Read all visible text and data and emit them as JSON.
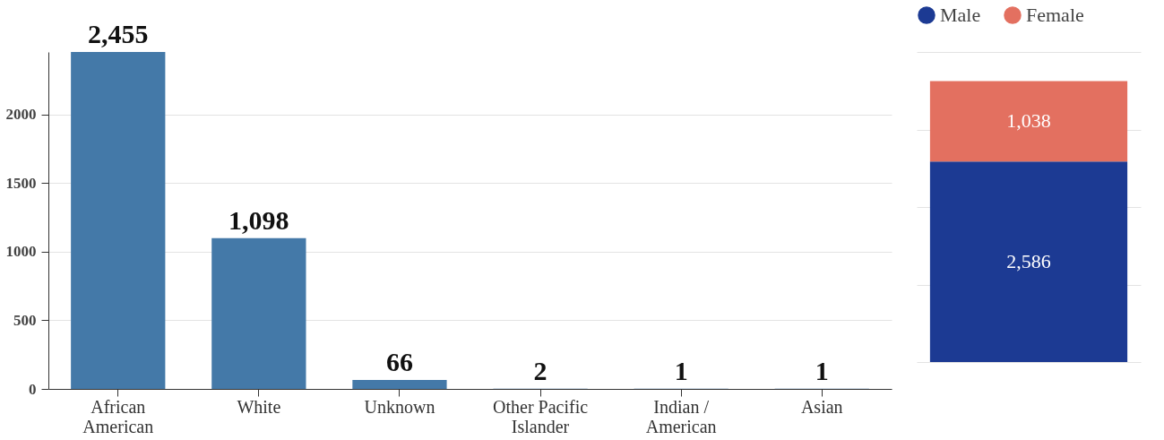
{
  "chart_data": [
    {
      "type": "bar",
      "categories": [
        "African American",
        "White",
        "Unknown",
        "Other Pacific Islander",
        "Indian / American",
        "Asian"
      ],
      "values": [
        2455,
        1098,
        66,
        2,
        1,
        1
      ],
      "value_labels": [
        "2,455",
        "1,098",
        "66",
        "2",
        "1",
        "1"
      ],
      "color": "#4479a8",
      "ylim": [
        0,
        2455
      ],
      "yticks": [
        0,
        500,
        1000,
        1500,
        2000
      ],
      "grid": "y"
    },
    {
      "type": "bar",
      "stacked": true,
      "categories": [
        null
      ],
      "series": [
        {
          "name": "Male",
          "color": "#1c3a93",
          "values": [
            2586
          ],
          "value_labels": [
            "2,586"
          ]
        },
        {
          "name": "Female",
          "color": "#e37060",
          "values": [
            1038
          ],
          "value_labels": [
            "1,038"
          ]
        }
      ],
      "grid": "y",
      "legend": "top"
    }
  ]
}
